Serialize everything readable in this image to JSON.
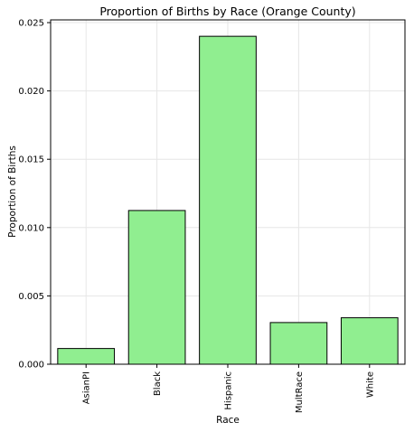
{
  "chart_data": {
    "type": "bar",
    "title": "Proportion of Births by Race (Orange County)",
    "xlabel": "Race",
    "ylabel": "Proportion of Births",
    "categories": [
      "AsianPI",
      "Black",
      "Hispanic",
      "MultRace",
      "White"
    ],
    "values": [
      0.00115,
      0.01125,
      0.024,
      0.00305,
      0.0034
    ],
    "ylim": [
      0,
      0.0252
    ],
    "yticks": [
      0.0,
      0.005,
      0.01,
      0.015,
      0.02,
      0.025
    ],
    "ytick_labels": [
      "0.000",
      "0.005",
      "0.010",
      "0.015",
      "0.020",
      "0.025"
    ],
    "grid": true,
    "bar_color": "#90ee90",
    "bar_edge_color": "#000000",
    "grid_color": "#e6e6e6"
  }
}
